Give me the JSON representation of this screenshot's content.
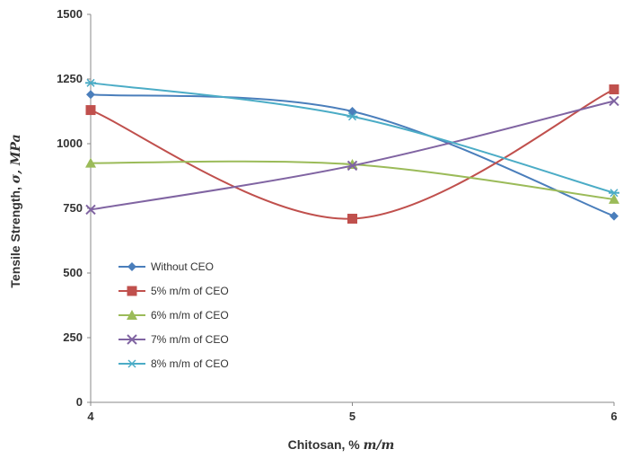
{
  "chart_data": {
    "type": "line",
    "x": [
      4,
      5,
      6
    ],
    "xlabel_prefix": "Chitosan, % ",
    "xlabel_unit": "m/m",
    "ylabel_prefix": "Tensile Strength, ",
    "ylabel_unit": "σ, MPa",
    "xlim": [
      4,
      6
    ],
    "ylim": [
      0,
      1500
    ],
    "xticks": [
      "4",
      "5",
      "6"
    ],
    "yticks": [
      "0",
      "250",
      "500",
      "750",
      "1000",
      "1250",
      "1500"
    ],
    "ytick_values": [
      0,
      250,
      500,
      750,
      1000,
      1250,
      1500
    ],
    "grid": false,
    "smooth": true,
    "legend_position": "left",
    "series": [
      {
        "name": "Without CEO",
        "values": [
          1190,
          1125,
          720
        ],
        "color": "#4a7ebb",
        "marker": "diamond"
      },
      {
        "name": "5% m/m of CEO",
        "values": [
          1130,
          710,
          1210
        ],
        "color": "#c0504d",
        "marker": "square"
      },
      {
        "name": "6% m/m of CEO",
        "values": [
          925,
          920,
          785
        ],
        "color": "#9bbb59",
        "marker": "triangle"
      },
      {
        "name": "7% m/m of CEO",
        "values": [
          745,
          915,
          1165
        ],
        "color": "#8064a2",
        "marker": "x"
      },
      {
        "name": "8% m/m of CEO",
        "values": [
          1235,
          1105,
          810
        ],
        "color": "#4bacc6",
        "marker": "star"
      }
    ]
  }
}
